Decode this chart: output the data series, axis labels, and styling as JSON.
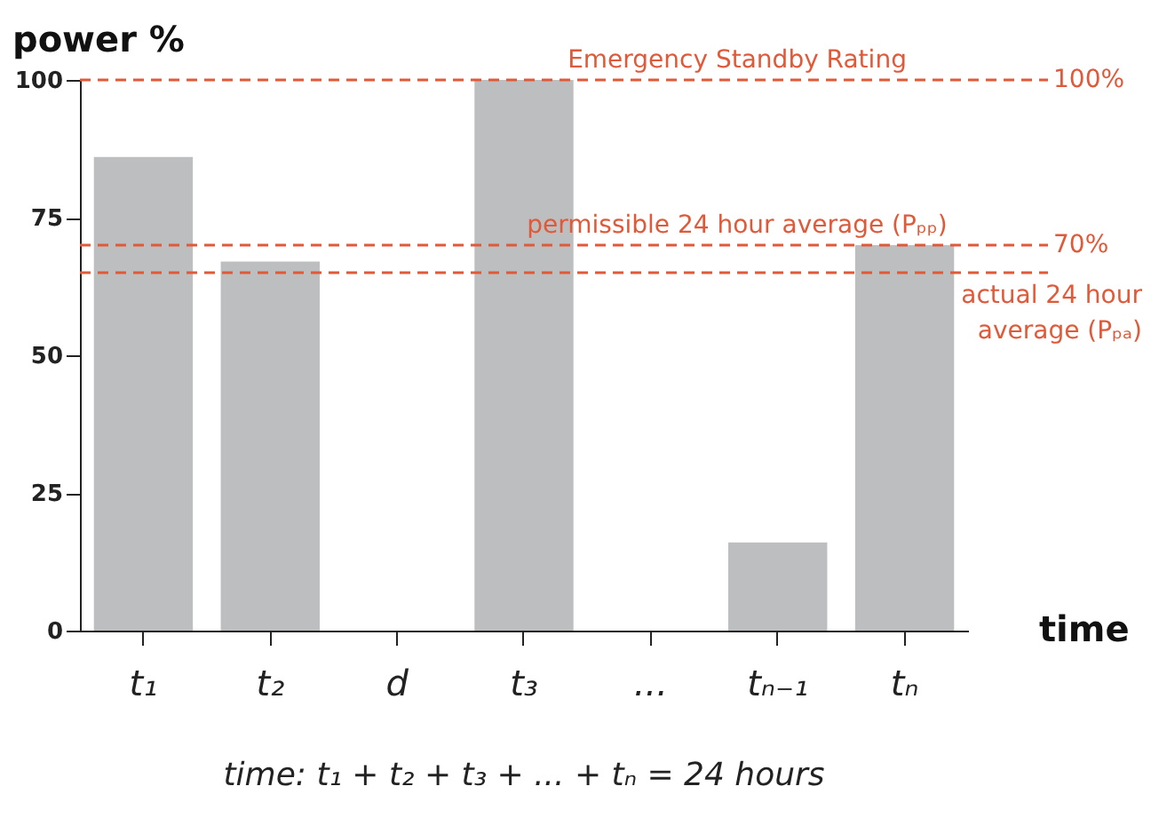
{
  "chart_data": {
    "type": "bar",
    "ylabel": "power %",
    "xlabel": "time",
    "categories": [
      "t₁",
      "t₂",
      "d",
      "t₃",
      "...",
      "tₙ₋₁",
      "tₙ"
    ],
    "values": [
      86,
      67,
      null,
      100,
      null,
      16,
      70
    ],
    "color": "#bdbec0",
    "ylim": [
      0,
      100
    ],
    "yticks": [
      0,
      25,
      50,
      75,
      100
    ],
    "grid": false,
    "ref_lines": [
      {
        "axis": "y",
        "value": 100,
        "label": "Emergency Standby Rating",
        "color": "#e05a3a",
        "line_style": "dashed"
      },
      {
        "axis": "y",
        "value": 70,
        "label": "permissible 24 hour average (Pₚₚ)",
        "color": "#e05a3a",
        "line_style": "dashed"
      },
      {
        "axis": "y",
        "value": 65,
        "label": "actual 24 hour average (Pₚₐ)",
        "color": "#e05a3a",
        "line_style": "dashed"
      }
    ],
    "annotations": [
      "100%",
      "70%",
      "time: t₁ + t₂ + t₃ + ... + tₙ = 24 hours"
    ]
  }
}
